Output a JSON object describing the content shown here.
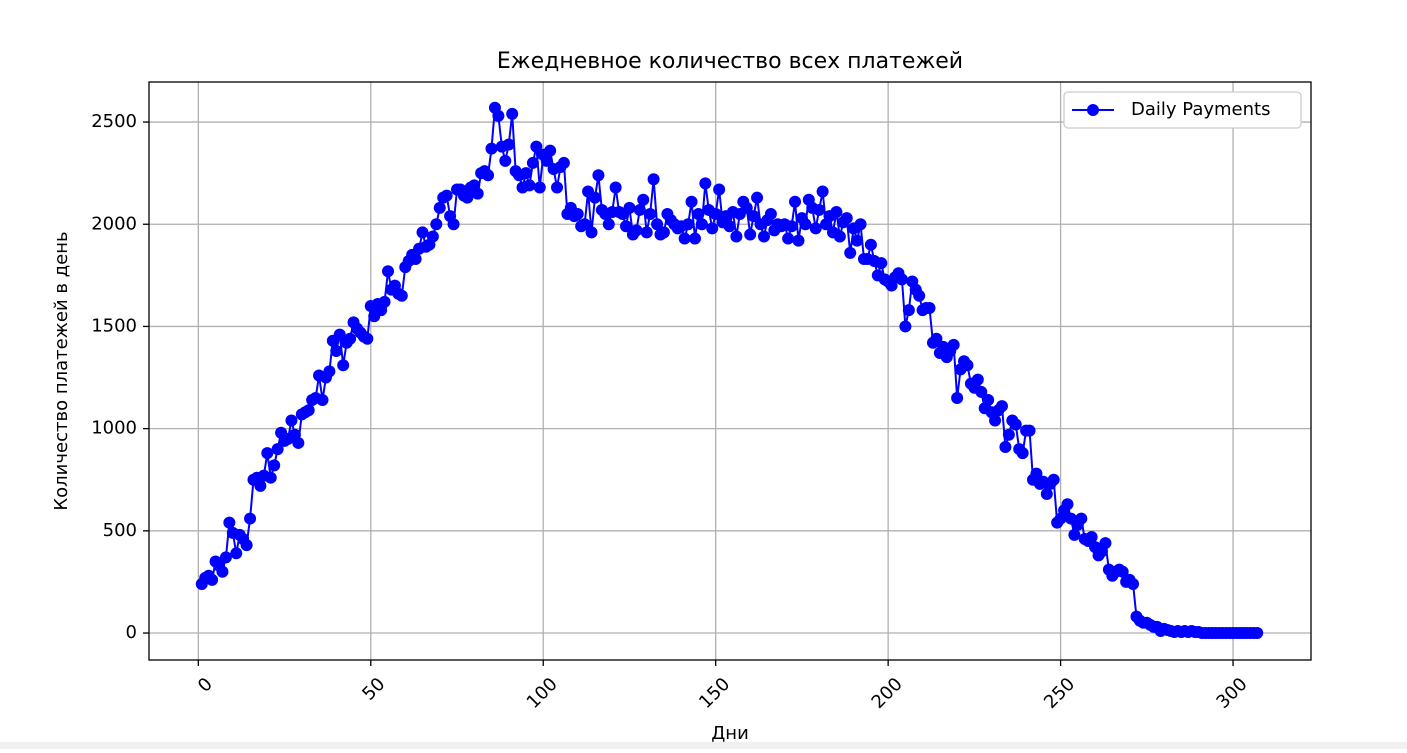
{
  "chart_data": {
    "type": "line",
    "title": "Ежедневное количество всех платежей",
    "x_label": "Дни",
    "y_label": "Количество платежей в день",
    "x": [
      1,
      2,
      3,
      4,
      5,
      6,
      7,
      8,
      9,
      10,
      11,
      12,
      13,
      14,
      15,
      16,
      17,
      18,
      19,
      20,
      21,
      22,
      23,
      24,
      25,
      26,
      27,
      28,
      29,
      30,
      31,
      32,
      33,
      34,
      35,
      36,
      37,
      38,
      39,
      40,
      41,
      42,
      43,
      44,
      45,
      46,
      47,
      48,
      49,
      50,
      51,
      52,
      53,
      54,
      55,
      56,
      57,
      58,
      59,
      60,
      61,
      62,
      63,
      64,
      65,
      66,
      67,
      68,
      69,
      70,
      71,
      72,
      73,
      74,
      75,
      76,
      77,
      78,
      79,
      80,
      81,
      82,
      83,
      84,
      85,
      86,
      87,
      88,
      89,
      90,
      91,
      92,
      93,
      94,
      95,
      96,
      97,
      98,
      99,
      100,
      101,
      102,
      103,
      104,
      105,
      106,
      107,
      108,
      109,
      110,
      111,
      112,
      113,
      114,
      115,
      116,
      117,
      118,
      119,
      120,
      121,
      122,
      123,
      124,
      125,
      126,
      127,
      128,
      129,
      130,
      131,
      132,
      133,
      134,
      135,
      136,
      137,
      138,
      139,
      140,
      141,
      142,
      143,
      144,
      145,
      146,
      147,
      148,
      149,
      150,
      151,
      152,
      153,
      154,
      155,
      156,
      157,
      158,
      159,
      160,
      161,
      162,
      163,
      164,
      165,
      166,
      167,
      168,
      169,
      170,
      171,
      172,
      173,
      174,
      175,
      176,
      177,
      178,
      179,
      180,
      181,
      182,
      183,
      184,
      185,
      186,
      187,
      188,
      189,
      190,
      191,
      192,
      193,
      194,
      195,
      196,
      197,
      198,
      199,
      200,
      201,
      202,
      203,
      204,
      205,
      206,
      207,
      208,
      209,
      210,
      211,
      212,
      213,
      214,
      215,
      216,
      217,
      218,
      219,
      220,
      221,
      222,
      223,
      224,
      225,
      226,
      227,
      228,
      229,
      230,
      231,
      232,
      233,
      234,
      235,
      236,
      237,
      238,
      239,
      240,
      241,
      242,
      243,
      244,
      245,
      246,
      247,
      248,
      249,
      250,
      251,
      252,
      253,
      254,
      255,
      256,
      257,
      258,
      259,
      260,
      261,
      262,
      263,
      264,
      265,
      266,
      267,
      268,
      269,
      270,
      271,
      272,
      273,
      274,
      275,
      276,
      277,
      278,
      279,
      280,
      281,
      282,
      283,
      284,
      285,
      286,
      287,
      288,
      289,
      290,
      291,
      292,
      293,
      294,
      295,
      296,
      297,
      298,
      299,
      300,
      301,
      302,
      303,
      304,
      305,
      306,
      307
    ],
    "series": [
      {
        "name": "Daily Payments",
        "color": "#0000ff",
        "values": [
          240,
          270,
          280,
          260,
          350,
          330,
          300,
          370,
          540,
          490,
          390,
          480,
          460,
          430,
          560,
          750,
          760,
          720,
          770,
          880,
          760,
          820,
          900,
          980,
          940,
          950,
          1040,
          970,
          930,
          1070,
          1080,
          1090,
          1140,
          1150,
          1260,
          1140,
          1250,
          1280,
          1430,
          1380,
          1460,
          1310,
          1420,
          1440,
          1520,
          1490,
          1470,
          1450,
          1440,
          1600,
          1550,
          1610,
          1580,
          1620,
          1770,
          1680,
          1700,
          1660,
          1650,
          1790,
          1820,
          1850,
          1830,
          1880,
          1960,
          1890,
          1900,
          1940,
          2000,
          2080,
          2130,
          2140,
          2040,
          2000,
          2170,
          2170,
          2140,
          2130,
          2180,
          2190,
          2150,
          2250,
          2260,
          2240,
          2370,
          2570,
          2530,
          2380,
          2310,
          2390,
          2540,
          2260,
          2240,
          2180,
          2250,
          2190,
          2300,
          2380,
          2180,
          2340,
          2310,
          2360,
          2270,
          2180,
          2280,
          2300,
          2050,
          2080,
          2040,
          2050,
          1990,
          2000,
          2160,
          1960,
          2130,
          2240,
          2070,
          2050,
          2000,
          2060,
          2180,
          2060,
          2050,
          1990,
          2080,
          1950,
          1970,
          2070,
          2120,
          1960,
          2050,
          2220,
          2000,
          1950,
          1960,
          2050,
          2020,
          2000,
          1980,
          1990,
          1930,
          2000,
          2110,
          1930,
          2050,
          2000,
          2200,
          2070,
          1980,
          2050,
          2170,
          2010,
          2040,
          1990,
          2060,
          1940,
          2050,
          2110,
          2080,
          1950,
          2040,
          2130,
          2000,
          1940,
          2020,
          2050,
          1970,
          2000,
          1990,
          2000,
          1930,
          1990,
          2110,
          1920,
          2030,
          2000,
          2120,
          2080,
          1980,
          2070,
          2160,
          2000,
          2040,
          1960,
          2060,
          1940,
          2010,
          2030,
          1860,
          1980,
          1920,
          2000,
          1830,
          1830,
          1900,
          1820,
          1750,
          1810,
          1730,
          1720,
          1700,
          1740,
          1760,
          1730,
          1500,
          1580,
          1720,
          1680,
          1650,
          1580,
          1590,
          1590,
          1420,
          1440,
          1370,
          1400,
          1350,
          1380,
          1410,
          1150,
          1290,
          1330,
          1310,
          1220,
          1200,
          1240,
          1180,
          1100,
          1140,
          1080,
          1040,
          1090,
          1110,
          910,
          970,
          1040,
          1020,
          900,
          880,
          990,
          990,
          750,
          780,
          730,
          740,
          680,
          730,
          750,
          540,
          560,
          600,
          630,
          560,
          480,
          530,
          560,
          460,
          450,
          470,
          420,
          380,
          400,
          440,
          310,
          280,
          300,
          310,
          300,
          250,
          260,
          240,
          80,
          60,
          50,
          50,
          40,
          30,
          30,
          10,
          20,
          15,
          10,
          5,
          10,
          5,
          10,
          5,
          10,
          5,
          5,
          0,
          0,
          0,
          0,
          0,
          0,
          0,
          0,
          0,
          0,
          0,
          0,
          0,
          0,
          0,
          0,
          0
        ]
      }
    ],
    "xlim": [
      -14.3,
      322.6
    ],
    "ylim": [
      -132,
      2696
    ],
    "xticks": [
      0,
      50,
      100,
      150,
      200,
      250,
      300
    ],
    "yticks": [
      0,
      500,
      1000,
      1500,
      2000,
      2500
    ],
    "grid": true,
    "legend": "upper right"
  }
}
